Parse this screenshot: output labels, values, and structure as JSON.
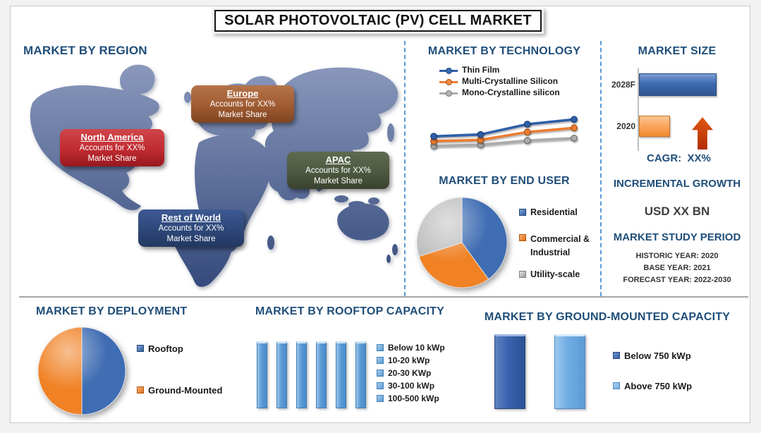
{
  "page_title": "SOLAR PHOTOVOLTAIC (PV) CELL MARKET",
  "region": {
    "heading": "MARKET BY REGION",
    "callouts": [
      {
        "title": "North America",
        "line1": "Accounts for XX%",
        "line2": "Market Share",
        "color": "#C02B30"
      },
      {
        "title": "Europe",
        "line1": "Accounts for XX%",
        "line2": "Market Share",
        "color": "#A05B32"
      },
      {
        "title": "APAC",
        "line1": "Accounts for XX%",
        "line2": "Market Share",
        "color": "#4D5840"
      },
      {
        "title": "Rest of World",
        "line1": "Accounts for XX%",
        "line2": "Market Share",
        "color": "#2E4778"
      }
    ]
  },
  "market_size": {
    "cagr_label": "CAGR:  XX%",
    "incremental_heading": "INCREMENTAL GROWTH",
    "incremental_value": "USD XX BN",
    "study_heading": "MARKET STUDY PERIOD",
    "historic_year": "HISTORIC YEAR: 2020",
    "base_year": "BASE YEAR: 2021",
    "forecast_year": "FORECAST YEAR: 2022-2030"
  },
  "chart_data": [
    {
      "id": "technology",
      "type": "line",
      "title": "MARKET BY TECHNOLOGY",
      "x": [
        1,
        2,
        3,
        4
      ],
      "x_tick_labels_shown": false,
      "y_axis_shown": false,
      "legend_position": "top",
      "series": [
        {
          "name": "Thin Film",
          "color": "#2E5FA8",
          "edge": "#1d3f74",
          "values": [
            30,
            33,
            50,
            58
          ]
        },
        {
          "name": "Multi-Crystalline Silicon",
          "color": "#ED7D31",
          "edge": "#a85313",
          "values": [
            22,
            24,
            37,
            44
          ]
        },
        {
          "name": "Mono-Crystalline silicon",
          "color": "#ABABAB",
          "edge": "#6f6f6f",
          "values": [
            14,
            16,
            23,
            27
          ]
        }
      ],
      "note_values": "relative levels read from pixels; no numeric axis shown"
    },
    {
      "id": "end_user",
      "type": "pie",
      "title": "MARKET BY END USER",
      "labels": [
        "Residential",
        "Commercial & Industrial",
        "Utility-scale"
      ],
      "values": [
        40,
        30,
        30
      ],
      "colors": [
        "#3F6DB3",
        "#F08124",
        "#BFBFBF"
      ],
      "legend_position": "right"
    },
    {
      "id": "market_size",
      "type": "bar",
      "orientation": "horizontal",
      "title": "MARKET SIZE",
      "categories": [
        "2028F",
        "2020"
      ],
      "values": [
        100,
        40
      ],
      "colors": [
        "#3E6BB0",
        "#F9A45B"
      ],
      "note_values": "relative bar lengths; numeric size shown only as XX"
    },
    {
      "id": "deployment",
      "type": "pie",
      "title": "MARKET BY DEPLOYMENT",
      "labels": [
        "Rooftop",
        "Ground-Mounted"
      ],
      "values": [
        50,
        50
      ],
      "colors": [
        "#3F6DB3",
        "#F08124"
      ],
      "legend_position": "right"
    },
    {
      "id": "rooftop_capacity",
      "type": "bar",
      "orientation": "vertical",
      "title": "MARKET BY ROOFTOP CAPACITY",
      "categories": [
        "Below 10 kWp",
        "10-20 kWp",
        "20-30 KWp",
        "30-100 kWp",
        "100-500 kWp"
      ],
      "values": [
        100,
        100,
        100,
        100,
        100,
        100
      ],
      "color": "#5B9BD5",
      "note_values": "six equal-height bars shown; legend lists five capacity classes"
    },
    {
      "id": "ground_capacity",
      "type": "bar",
      "orientation": "vertical",
      "title": "MARKET BY GROUND-MOUNTED CAPACITY",
      "categories": [
        "Below 750 kWp",
        "Above 750 kWp"
      ],
      "values": [
        100,
        100
      ],
      "colors": [
        "#3762AE",
        "#6FACE2"
      ]
    }
  ]
}
